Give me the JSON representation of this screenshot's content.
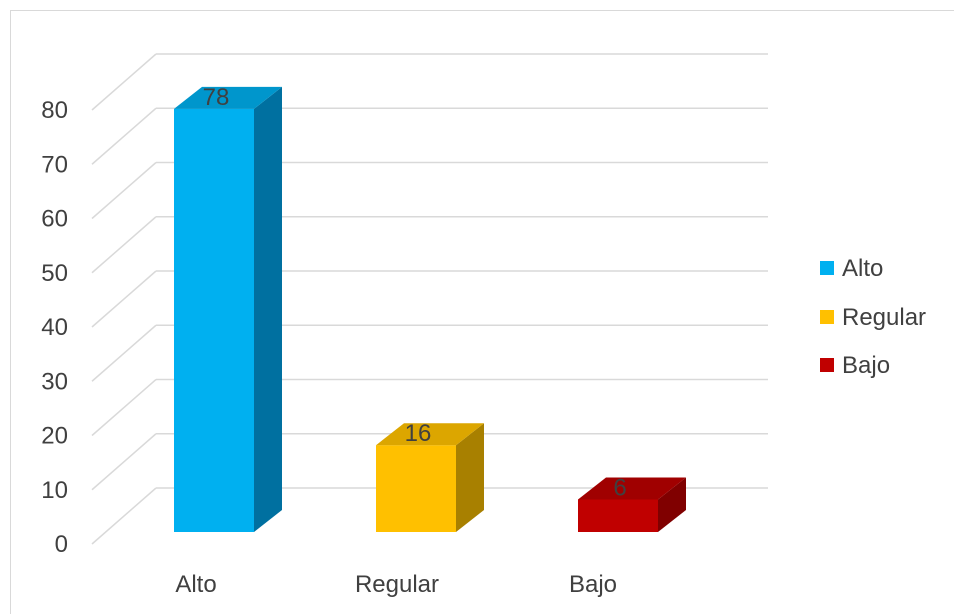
{
  "chart_data": {
    "type": "bar",
    "categories": [
      "Alto",
      "Regular",
      "Bajo"
    ],
    "values": [
      78,
      16,
      6
    ],
    "data_labels": [
      "78",
      "16",
      "6"
    ],
    "colors": [
      "#00b0f0",
      "#ffc000",
      "#c00000"
    ],
    "side_colors": [
      "#0070a0",
      "#a88000",
      "#800000"
    ],
    "top_colors": [
      "#0096cc",
      "#dca600",
      "#a00000"
    ],
    "ylim": [
      0,
      80
    ],
    "yticks": [
      "0",
      "10",
      "20",
      "30",
      "40",
      "50",
      "60",
      "70",
      "80"
    ],
    "grid": true,
    "three_d": true,
    "legend": {
      "position": "right",
      "entries": [
        "Alto",
        "Regular",
        "Bajo"
      ]
    },
    "title": "",
    "xlabel": "",
    "ylabel": ""
  }
}
